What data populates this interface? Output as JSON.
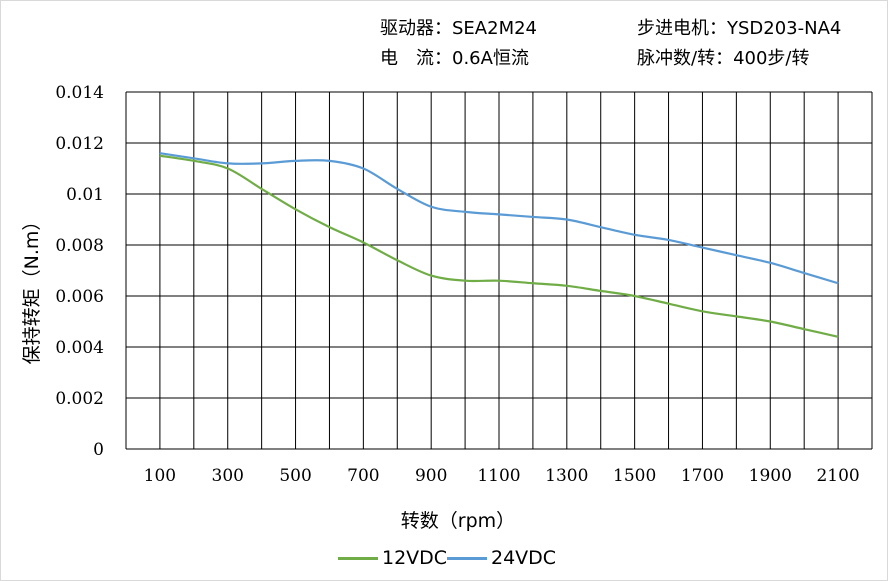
{
  "header": {
    "driver": "驱动器：SEA2M24",
    "current": "电　流：0.6A恒流",
    "motor": "步进电机：YSD203-NA4",
    "pulses": "脉冲数/转：400步/转"
  },
  "chart_data": {
    "type": "line",
    "xlabel": "转数（rpm）",
    "ylabel": "保持转矩（N.m）",
    "xlim": [
      0,
      2200
    ],
    "ylim": [
      0,
      0.014
    ],
    "grid": true,
    "legend_position": "bottom",
    "x_tick_labels": [
      "100",
      "300",
      "500",
      "700",
      "900",
      "1100",
      "1300",
      "1500",
      "1700",
      "1900",
      "2100"
    ],
    "y_tick_labels": [
      "0",
      "0.002",
      "0.004",
      "0.006",
      "0.008",
      "0.01",
      "0.012",
      "0.014"
    ],
    "x": [
      100,
      200,
      300,
      400,
      500,
      600,
      700,
      800,
      900,
      1000,
      1100,
      1200,
      1300,
      1400,
      1500,
      1600,
      1700,
      1800,
      1900,
      2000,
      2100
    ],
    "series": [
      {
        "name": "12VDC",
        "color": "#70ad47",
        "values": [
          0.0115,
          0.0113,
          0.011,
          0.0102,
          0.0094,
          0.0087,
          0.0081,
          0.0074,
          0.0068,
          0.0066,
          0.0066,
          0.0065,
          0.0064,
          0.0062,
          0.006,
          0.0057,
          0.0054,
          0.0052,
          0.005,
          0.0047,
          0.0044
        ]
      },
      {
        "name": "24VDC",
        "color": "#5b9bd5",
        "values": [
          0.0116,
          0.0114,
          0.0112,
          0.0112,
          0.0113,
          0.0113,
          0.011,
          0.0102,
          0.0095,
          0.0093,
          0.0092,
          0.0091,
          0.009,
          0.0087,
          0.0084,
          0.0082,
          0.0079,
          0.0076,
          0.0073,
          0.0069,
          0.0065
        ]
      }
    ]
  }
}
